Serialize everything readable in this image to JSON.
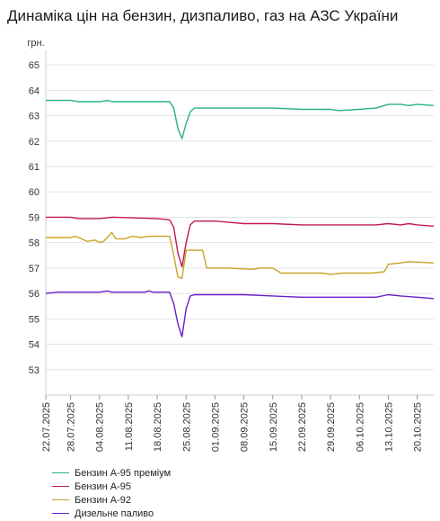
{
  "page": {
    "title": "Динаміка цін на бензин, дизпаливо, газ на АЗС України"
  },
  "chart_data": {
    "type": "line",
    "title": "Динаміка цін на бензин, дизпаливо, газ на АЗС України",
    "ylabel": "грн.",
    "xlabel": "",
    "ylim": [
      52,
      65.5
    ],
    "yticks": [
      53,
      54,
      55,
      56,
      57,
      58,
      59,
      60,
      61,
      62,
      63,
      64,
      65
    ],
    "xlim": [
      "2025-07-22",
      "2025-10-24"
    ],
    "xticks": [
      "2025-07-22",
      "2025-07-28",
      "2025-08-04",
      "2025-08-11",
      "2025-08-18",
      "2025-08-25",
      "2025-09-01",
      "2025-09-08",
      "2025-09-15",
      "2025-09-22",
      "2025-09-29",
      "2025-10-06",
      "2025-10-13",
      "2025-10-20"
    ],
    "xtick_labels": [
      "22.07.2025",
      "28.07.2025",
      "04.08.2025",
      "11.08.2025",
      "18.08.2025",
      "25.08.2025",
      "01.09.2025",
      "08.09.2025",
      "15.09.2025",
      "22.09.2025",
      "29.09.2025",
      "06.10.2025",
      "13.10.2025",
      "20.10.2025"
    ],
    "grid": "horizontal",
    "legend_position": "bottom-left",
    "series": [
      {
        "name": "Бензин А-95 преміум",
        "color": "#2ab08a",
        "points": [
          [
            "2025-07-22",
            63.6
          ],
          [
            "2025-07-28",
            63.6
          ],
          [
            "2025-07-30",
            63.55
          ],
          [
            "2025-08-04",
            63.55
          ],
          [
            "2025-08-06",
            63.6
          ],
          [
            "2025-08-07",
            63.55
          ],
          [
            "2025-08-18",
            63.55
          ],
          [
            "2025-08-21",
            63.55
          ],
          [
            "2025-08-22",
            63.3
          ],
          [
            "2025-08-23",
            62.5
          ],
          [
            "2025-08-24",
            62.1
          ],
          [
            "2025-08-25",
            62.7
          ],
          [
            "2025-08-26",
            63.15
          ],
          [
            "2025-08-27",
            63.3
          ],
          [
            "2025-08-29",
            63.3
          ],
          [
            "2025-09-08",
            63.3
          ],
          [
            "2025-09-15",
            63.3
          ],
          [
            "2025-09-22",
            63.25
          ],
          [
            "2025-09-29",
            63.25
          ],
          [
            "2025-10-01",
            63.2
          ],
          [
            "2025-10-06",
            63.25
          ],
          [
            "2025-10-10",
            63.3
          ],
          [
            "2025-10-13",
            63.45
          ],
          [
            "2025-10-16",
            63.45
          ],
          [
            "2025-10-18",
            63.4
          ],
          [
            "2025-10-20",
            63.45
          ],
          [
            "2025-10-24",
            63.4
          ]
        ]
      },
      {
        "name": "Бензин А-95",
        "color": "#c2185b",
        "points": [
          [
            "2025-07-22",
            59.0
          ],
          [
            "2025-07-28",
            59.0
          ],
          [
            "2025-07-30",
            58.95
          ],
          [
            "2025-08-01",
            58.95
          ],
          [
            "2025-08-04",
            58.95
          ],
          [
            "2025-08-07",
            59.0
          ],
          [
            "2025-08-18",
            58.95
          ],
          [
            "2025-08-21",
            58.9
          ],
          [
            "2025-08-22",
            58.6
          ],
          [
            "2025-08-23",
            57.6
          ],
          [
            "2025-08-24",
            57.05
          ],
          [
            "2025-08-25",
            58.0
          ],
          [
            "2025-08-26",
            58.7
          ],
          [
            "2025-08-27",
            58.85
          ],
          [
            "2025-09-01",
            58.85
          ],
          [
            "2025-09-08",
            58.75
          ],
          [
            "2025-09-15",
            58.75
          ],
          [
            "2025-09-22",
            58.7
          ],
          [
            "2025-09-29",
            58.7
          ],
          [
            "2025-10-06",
            58.7
          ],
          [
            "2025-10-10",
            58.7
          ],
          [
            "2025-10-13",
            58.75
          ],
          [
            "2025-10-16",
            58.7
          ],
          [
            "2025-10-18",
            58.75
          ],
          [
            "2025-10-20",
            58.7
          ],
          [
            "2025-10-24",
            58.65
          ]
        ]
      },
      {
        "name": "Бензин А-92",
        "color": "#c9a227",
        "points": [
          [
            "2025-07-22",
            58.2
          ],
          [
            "2025-07-28",
            58.2
          ],
          [
            "2025-07-29",
            58.25
          ],
          [
            "2025-07-30",
            58.2
          ],
          [
            "2025-08-01",
            58.05
          ],
          [
            "2025-08-03",
            58.1
          ],
          [
            "2025-08-04",
            58.0
          ],
          [
            "2025-08-05",
            58.05
          ],
          [
            "2025-08-07",
            58.4
          ],
          [
            "2025-08-08",
            58.15
          ],
          [
            "2025-08-10",
            58.15
          ],
          [
            "2025-08-12",
            58.25
          ],
          [
            "2025-08-14",
            58.2
          ],
          [
            "2025-08-16",
            58.25
          ],
          [
            "2025-08-21",
            58.25
          ],
          [
            "2025-08-22",
            57.5
          ],
          [
            "2025-08-23",
            56.65
          ],
          [
            "2025-08-24",
            56.6
          ],
          [
            "2025-08-25",
            57.7
          ],
          [
            "2025-08-29",
            57.7
          ],
          [
            "2025-08-30",
            57.0
          ],
          [
            "2025-09-04",
            57.0
          ],
          [
            "2025-09-10",
            56.95
          ],
          [
            "2025-09-12",
            57.0
          ],
          [
            "2025-09-15",
            57.0
          ],
          [
            "2025-09-17",
            56.8
          ],
          [
            "2025-09-22",
            56.8
          ],
          [
            "2025-09-27",
            56.8
          ],
          [
            "2025-09-29",
            56.75
          ],
          [
            "2025-10-02",
            56.8
          ],
          [
            "2025-10-06",
            56.8
          ],
          [
            "2025-10-09",
            56.8
          ],
          [
            "2025-10-12",
            56.85
          ],
          [
            "2025-10-13",
            57.15
          ],
          [
            "2025-10-16",
            57.2
          ],
          [
            "2025-10-18",
            57.25
          ],
          [
            "2025-10-24",
            57.2
          ]
        ]
      },
      {
        "name": "Дизельне паливо",
        "color": "#6a1fc9",
        "points": [
          [
            "2025-07-22",
            56.0
          ],
          [
            "2025-07-25",
            56.05
          ],
          [
            "2025-08-04",
            56.05
          ],
          [
            "2025-08-06",
            56.1
          ],
          [
            "2025-08-07",
            56.05
          ],
          [
            "2025-08-15",
            56.05
          ],
          [
            "2025-08-16",
            56.1
          ],
          [
            "2025-08-17",
            56.05
          ],
          [
            "2025-08-21",
            56.05
          ],
          [
            "2025-08-22",
            55.6
          ],
          [
            "2025-08-23",
            54.8
          ],
          [
            "2025-08-24",
            54.3
          ],
          [
            "2025-08-25",
            55.4
          ],
          [
            "2025-08-26",
            55.9
          ],
          [
            "2025-08-27",
            55.95
          ],
          [
            "2025-09-08",
            55.95
          ],
          [
            "2025-09-15",
            55.9
          ],
          [
            "2025-09-22",
            55.85
          ],
          [
            "2025-10-06",
            55.85
          ],
          [
            "2025-10-10",
            55.85
          ],
          [
            "2025-10-13",
            55.95
          ],
          [
            "2025-10-16",
            55.9
          ],
          [
            "2025-10-20",
            55.85
          ],
          [
            "2025-10-24",
            55.8
          ]
        ]
      }
    ]
  }
}
